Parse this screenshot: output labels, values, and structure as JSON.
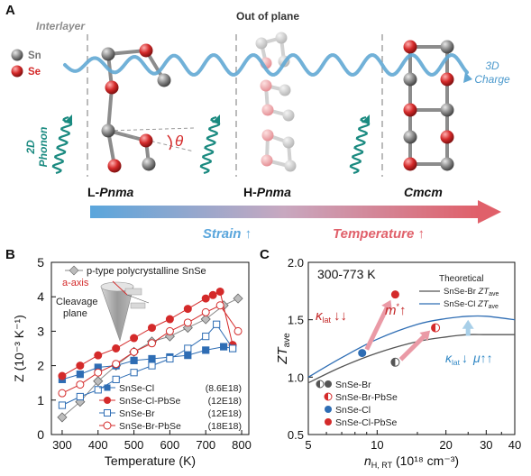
{
  "panel_a": {
    "label": "A",
    "interlayer": "Interlayer",
    "out_of_plane": "Out of plane",
    "legend_sn": "Sn",
    "legend_se": "Se",
    "charge_line1": "3D",
    "charge_line2": "Charge",
    "phonon_line1": "2D",
    "phonon_line2": "Phonon",
    "theta": "θ",
    "phase1_prefix": "L-",
    "phase1_name": "Pnma",
    "phase2_prefix": "H-",
    "phase2_name": "Pnma",
    "phase3_name": "Cmcm",
    "strain": "Strain ↑",
    "temperature": "Temperature ↑",
    "colors": {
      "sn": "#808080",
      "se": "#d42a2a",
      "se_light": "#eda0a4",
      "wave": "#62a8d4",
      "phonon": "#1a8a80"
    }
  },
  "panel_b": {
    "label": "B",
    "legend_top": "p-type polycrystalline SnSe",
    "a_axis": "a-axis",
    "cleavage_line1": "Cleavage",
    "cleavage_line2": "plane",
    "legend": [
      {
        "name": "SnSe-Cl",
        "conc": "(8.6E18)"
      },
      {
        "name": "SnSe-Cl-PbSe",
        "conc": "(12E18)"
      },
      {
        "name": "SnSe-Br",
        "conc": "(12E18)"
      },
      {
        "name": "SnSe-Br-PbSe",
        "conc": "(18E18)"
      }
    ],
    "chart_data": {
      "type": "line",
      "xlabel": "Temperature (K)",
      "ylabel": "Z (10⁻³ K⁻¹)",
      "xlim": [
        270,
        820
      ],
      "ylim": [
        0,
        5
      ],
      "xticks": [
        300,
        400,
        500,
        600,
        700,
        800
      ],
      "yticks": [
        0,
        1,
        2,
        3,
        4,
        5
      ],
      "series": [
        {
          "name": "p-type polycrystalline SnSe",
          "color": "#888888",
          "marker": "diamond",
          "fill": true,
          "x": [
            300,
            350,
            400,
            450,
            500,
            550,
            600,
            650,
            700,
            750,
            790
          ],
          "y": [
            0.5,
            0.95,
            1.55,
            2.0,
            2.4,
            2.7,
            2.85,
            3.1,
            3.35,
            3.75,
            3.95
          ]
        },
        {
          "name": "SnSe-Cl",
          "color": "#2e6db4",
          "marker": "square",
          "fill": true,
          "x": [
            300,
            350,
            400,
            450,
            500,
            550,
            600,
            650,
            700,
            750,
            775
          ],
          "y": [
            1.6,
            1.75,
            1.95,
            2.0,
            2.15,
            2.2,
            2.25,
            2.3,
            2.45,
            2.55,
            2.5
          ]
        },
        {
          "name": "SnSe-Cl-PbSe",
          "color": "#d42a2a",
          "marker": "circle",
          "fill": true,
          "x": [
            300,
            350,
            400,
            450,
            500,
            550,
            600,
            650,
            700,
            720,
            740,
            775
          ],
          "y": [
            1.7,
            2.0,
            2.3,
            2.5,
            2.8,
            3.1,
            3.35,
            3.65,
            3.95,
            4.05,
            4.15,
            2.6
          ]
        },
        {
          "name": "SnSe-Br",
          "color": "#2e6db4",
          "marker": "square",
          "fill": false,
          "x": [
            300,
            350,
            400,
            450,
            500,
            550,
            600,
            650,
            700,
            730,
            775
          ],
          "y": [
            0.85,
            1.1,
            1.3,
            1.6,
            1.8,
            2.0,
            2.2,
            2.5,
            2.85,
            3.2,
            2.5
          ]
        },
        {
          "name": "SnSe-Br-PbSe",
          "color": "#d42a2a",
          "marker": "circle",
          "fill": false,
          "x": [
            300,
            350,
            400,
            450,
            500,
            550,
            600,
            650,
            700,
            740,
            790
          ],
          "y": [
            1.2,
            1.45,
            1.8,
            2.05,
            2.4,
            2.65,
            3.0,
            3.25,
            3.55,
            3.75,
            3.0
          ]
        }
      ]
    }
  },
  "panel_c": {
    "label": "C",
    "temp_range": "300-773 K",
    "theory_title": "Theoretical",
    "theory_br_prefix": "SnSe-Br ",
    "theory_cl_prefix": "SnSe-Cl ",
    "theory_zt": "ZT",
    "theory_sub": "ave",
    "kappa_left": "κ",
    "kappa_sub": "lat",
    "kappa_left_arrows": "↓↓",
    "m_star": "m",
    "m_star_sup": "*",
    "up_arrow": "↑",
    "kappa_right_arrow": "↓",
    "mu": "μ",
    "mu_arrows": "↑↑",
    "legend": [
      "SnSe-Br",
      "SnSe-Br-PbSe",
      "SnSe-Cl",
      "SnSe-Cl-PbSe"
    ],
    "chart_data": {
      "type": "scatter",
      "xlabel": "n H, RT (10¹⁸ cm⁻³)",
      "ylabel": "ZT ave",
      "xscale": "log",
      "xlim": [
        5,
        40
      ],
      "ylim": [
        0.5,
        2.0
      ],
      "xticks": [
        5,
        10,
        20,
        30,
        40
      ],
      "yticks": [
        0.5,
        1.0,
        1.5,
        2.0
      ],
      "points": [
        {
          "name": "SnSe-Br",
          "x": 12,
          "y": 1.13,
          "color": "#555555",
          "style": "half"
        },
        {
          "name": "SnSe-Br-PbSe",
          "x": 18,
          "y": 1.43,
          "color": "#d42a2a",
          "style": "half"
        },
        {
          "name": "SnSe-Cl",
          "x": 8.6,
          "y": 1.21,
          "color": "#2e6db4",
          "style": "full"
        },
        {
          "name": "SnSe-Cl-PbSe",
          "x": 12,
          "y": 1.72,
          "color": "#d42a2a",
          "style": "full"
        }
      ],
      "curves": [
        {
          "name": "SnSe-Br ZTave",
          "color": "#555555",
          "x": [
            5,
            7,
            10,
            15,
            20,
            25,
            30,
            40
          ],
          "y": [
            0.95,
            1.09,
            1.21,
            1.31,
            1.35,
            1.37,
            1.37,
            1.37
          ]
        },
        {
          "name": "SnSe-Cl ZTave",
          "color": "#2e6db4",
          "x": [
            5,
            7,
            10,
            15,
            20,
            25,
            30,
            40
          ],
          "y": [
            1.0,
            1.17,
            1.33,
            1.46,
            1.51,
            1.53,
            1.53,
            1.5
          ]
        }
      ]
    }
  }
}
